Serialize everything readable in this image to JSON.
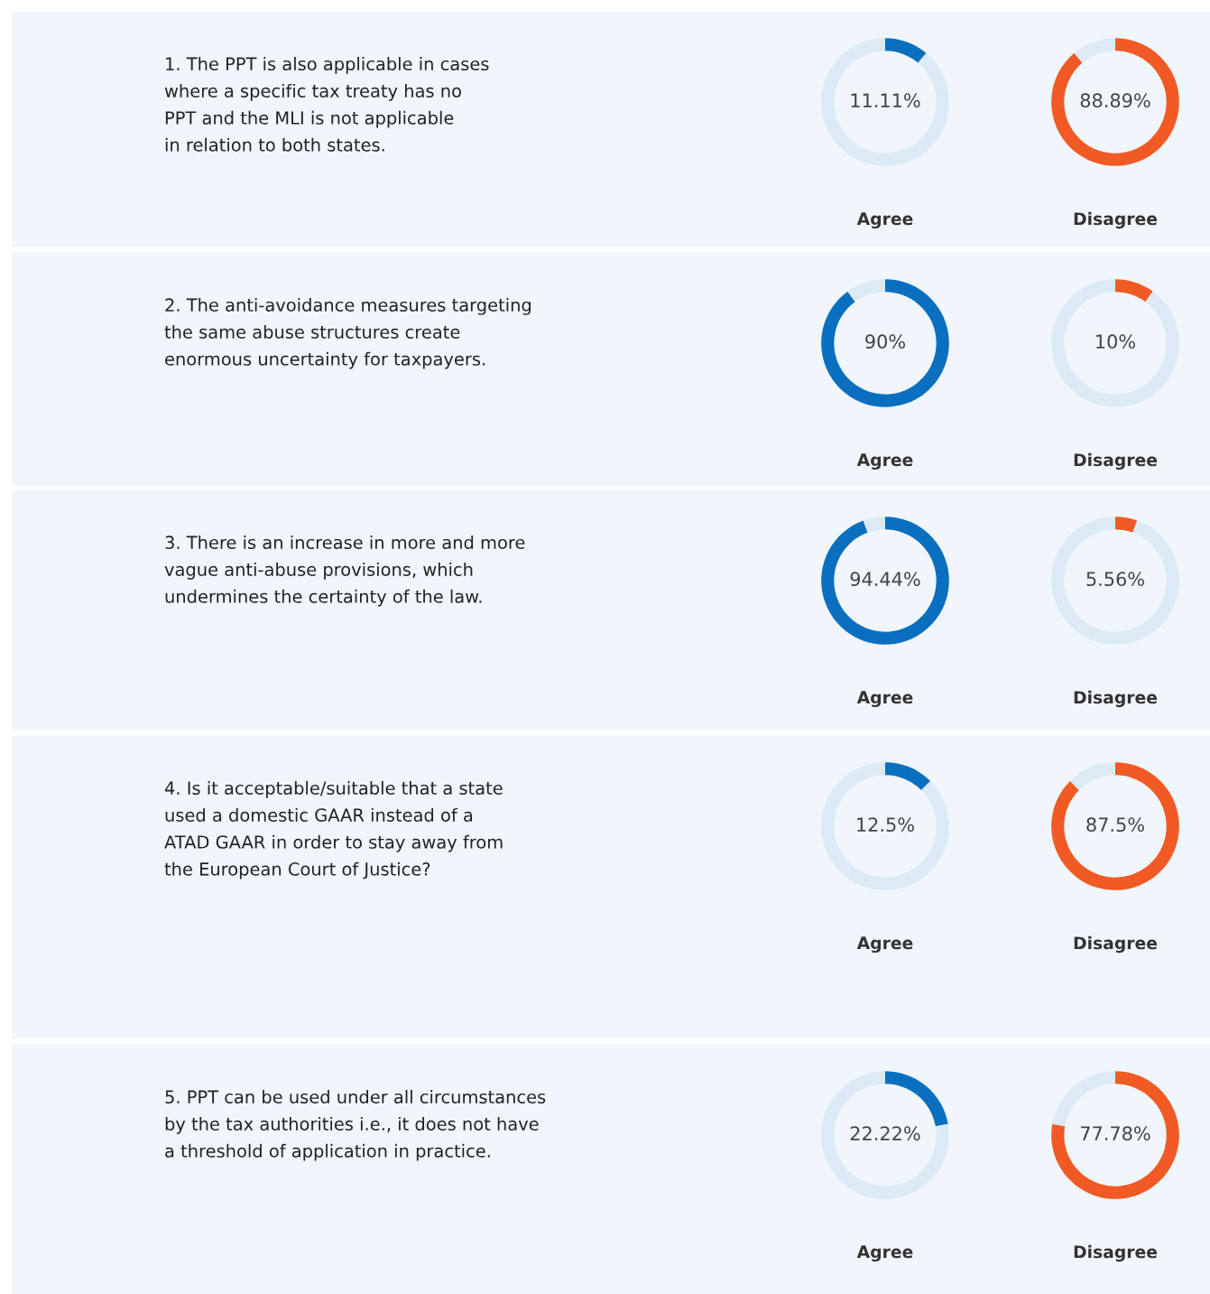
{
  "chart_data": [
    {
      "type": "other",
      "annotations": [
        "1. The PPT is also applicable in cases\nwhere a specific tax treaty has no\nPPT and the MLI is not applicable\nin relation to both states."
      ]
    },
    {
      "type": "donut",
      "title": "Agree",
      "categories": [
        null,
        null
      ],
      "values": [
        11.11,
        88.89
      ],
      "colors": [
        "#0a6fbf",
        "#dbeaf5"
      ],
      "value_labels": [
        "11.11%",
        null
      ]
    },
    {
      "type": "donut",
      "title": "Disagree",
      "categories": [
        null,
        null
      ],
      "values": [
        88.89,
        11.11
      ],
      "colors": [
        "#f15a24",
        "#dbeaf5"
      ],
      "value_labels": [
        "88.89%",
        null
      ]
    },
    {
      "type": "other",
      "annotations": [
        "2. The anti-avoidance measures targeting\nthe same abuse structures create\nenormous uncertainty for taxpayers."
      ]
    },
    {
      "type": "donut",
      "title": "Agree",
      "categories": [
        null,
        null
      ],
      "values": [
        90,
        10
      ],
      "colors": [
        "#0a6fbf",
        "#dbeaf5"
      ],
      "value_labels": [
        "90%",
        null
      ]
    },
    {
      "type": "donut",
      "title": "Disagree",
      "categories": [
        null,
        null
      ],
      "values": [
        10,
        90
      ],
      "colors": [
        "#f15a24",
        "#dbeaf5"
      ],
      "value_labels": [
        "10%",
        null
      ]
    },
    {
      "type": "other",
      "annotations": [
        "3. There is an increase in more and more\nvague anti-abuse provisions, which\nundermines the certainty of the law."
      ]
    },
    {
      "type": "donut",
      "title": "Agree",
      "categories": [
        null,
        null
      ],
      "values": [
        94.44,
        5.56
      ],
      "colors": [
        "#0a6fbf",
        "#dbeaf5"
      ],
      "value_labels": [
        "94.44%",
        null
      ]
    },
    {
      "type": "donut",
      "title": "Disagree",
      "categories": [
        null,
        null
      ],
      "values": [
        5.56,
        94.44
      ],
      "colors": [
        "#f15a24",
        "#dbeaf5"
      ],
      "value_labels": [
        "5.56%",
        null
      ]
    },
    {
      "type": "other",
      "annotations": [
        "4. Is it acceptable/suitable that a state\nused a domestic GAAR instead of a\nATAD GAAR in order to stay away from\nthe European Court of Justice?"
      ]
    },
    {
      "type": "donut",
      "title": "Agree",
      "categories": [
        null,
        null
      ],
      "values": [
        12.5,
        87.5
      ],
      "colors": [
        "#0a6fbf",
        "#dbeaf5"
      ],
      "value_labels": [
        "12.5%",
        null
      ]
    },
    {
      "type": "donut",
      "title": "Disagree",
      "categories": [
        null,
        null
      ],
      "values": [
        87.5,
        12.5
      ],
      "colors": [
        "#f15a24",
        "#dbeaf5"
      ],
      "value_labels": [
        "87.5%",
        null
      ]
    },
    {
      "type": "other",
      "annotations": [
        "5. PPT can be used under all circumstances\nby the tax authorities i.e., it does not have\na threshold of application in practice."
      ]
    },
    {
      "type": "donut",
      "title": "Agree",
      "categories": [
        null,
        null
      ],
      "values": [
        22.22,
        77.78
      ],
      "colors": [
        "#0a6fbf",
        "#dbeaf5"
      ],
      "value_labels": [
        "22.22%",
        null
      ]
    },
    {
      "type": "donut",
      "title": "Disagree",
      "categories": [
        null,
        null
      ],
      "values": [
        77.78,
        22.22
      ],
      "colors": [
        "#f15a24",
        "#dbeaf5"
      ],
      "value_labels": [
        "77.78%",
        null
      ]
    }
  ]
}
